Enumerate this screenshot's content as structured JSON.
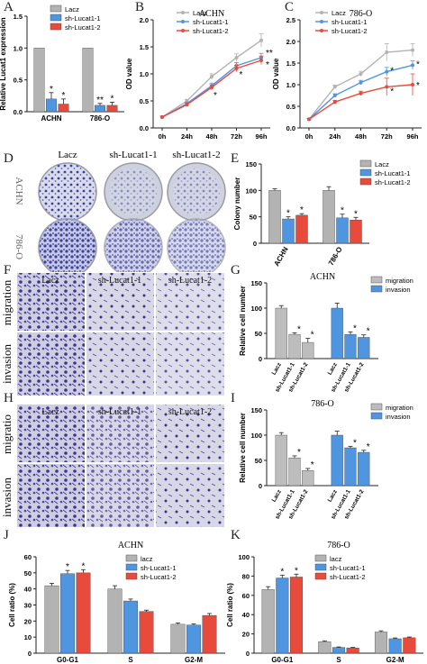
{
  "colors": {
    "lacz": "#b3b3b3",
    "sh1": "#4f95e0",
    "sh2": "#e84a3c",
    "migration": "#bdbdbd",
    "invasion": "#4f95e0",
    "dish_stain": "#3b3fa8",
    "transwell_bg": "#c9c8dc",
    "transwell_cell": "#3a3590"
  },
  "panel_letters": [
    "A",
    "B",
    "C",
    "D",
    "E",
    "F",
    "G",
    "H",
    "I",
    "J",
    "K"
  ],
  "images": {
    "colony_columns": [
      "Lacz",
      "sh-Lucat1-1",
      "sh-Lucat1-2"
    ],
    "colony_rows": [
      "ACHN",
      "786-O"
    ],
    "transwell_F_columns": [
      "Lacz",
      "sh-Lucat1-1",
      "sh-Lucat1-2"
    ],
    "transwell_F_rows": [
      "migration",
      "invasion"
    ],
    "transwell_H_columns": [
      "Lacz",
      "sh-Lucat1-1",
      "sh-Lucat1-2"
    ],
    "transwell_H_rows": [
      "migratio",
      "invasion"
    ]
  },
  "chart_data": [
    {
      "id": "A",
      "type": "bar",
      "ylabel": "Relative Lucat1 expression",
      "ylim": [
        0,
        1.5
      ],
      "yticks": [
        "0.0",
        "0.5",
        "1.0",
        "1.5"
      ],
      "categories": [
        "ACHN",
        "786-O"
      ],
      "legend": [
        "Lacz",
        "sh-Lucat1-1",
        "sh-Lucat1-2"
      ],
      "series": [
        {
          "name": "Lacz",
          "values": [
            1.0,
            1.0
          ],
          "errors": [
            0,
            0
          ],
          "sig": [
            "",
            ""
          ]
        },
        {
          "name": "sh-Lucat1-1",
          "values": [
            0.2,
            0.1
          ],
          "errors": [
            0.1,
            0.03
          ],
          "sig": [
            "*",
            "**"
          ]
        },
        {
          "name": "sh-Lucat1-2",
          "values": [
            0.12,
            0.1
          ],
          "errors": [
            0.08,
            0.05
          ],
          "sig": [
            "*",
            "*"
          ]
        }
      ]
    },
    {
      "id": "B",
      "type": "line",
      "title": "ACHN",
      "ylabel": "OD value",
      "ylim": [
        0,
        2.0
      ],
      "yticks": [
        "0.0",
        "0.5",
        "1.0",
        "1.5",
        "2.0"
      ],
      "x": [
        "0h",
        "24h",
        "48h",
        "72h",
        "96h"
      ],
      "legend": [
        "Lacz",
        "sh-Lucat1-1",
        "sh-Lucat1-2"
      ],
      "series": [
        {
          "name": "Lacz",
          "values": [
            0.2,
            0.5,
            0.95,
            1.3,
            1.62
          ],
          "errors": [
            0.02,
            0.03,
            0.05,
            0.07,
            0.12
          ]
        },
        {
          "name": "sh-Lucat1-1",
          "values": [
            0.2,
            0.45,
            0.78,
            1.15,
            1.3
          ],
          "errors": [
            0.02,
            0.03,
            0.05,
            0.06,
            0.08
          ]
        },
        {
          "name": "sh-Lucat1-2",
          "values": [
            0.2,
            0.43,
            0.75,
            1.1,
            1.25
          ],
          "errors": [
            0.02,
            0.03,
            0.05,
            0.06,
            0.08
          ]
        }
      ],
      "annotations": [
        "*",
        "*",
        "**",
        "*"
      ]
    },
    {
      "id": "C",
      "type": "line",
      "title": "786-O",
      "ylabel": "OD value",
      "ylim": [
        0,
        2.5
      ],
      "yticks": [
        "0.0",
        "0.5",
        "1.0",
        "1.5",
        "2.0",
        "2.5"
      ],
      "x": [
        "0h",
        "24h",
        "48h",
        "72h",
        "96h"
      ],
      "legend": [
        "Lacz",
        "sh-Lucat1-1",
        "sh-Lucat1-2"
      ],
      "series": [
        {
          "name": "Lacz",
          "values": [
            0.2,
            0.95,
            1.25,
            1.75,
            1.8
          ],
          "errors": [
            0.02,
            0.04,
            0.06,
            0.2,
            0.15
          ]
        },
        {
          "name": "sh-Lucat1-1",
          "values": [
            0.2,
            0.75,
            1.05,
            1.3,
            1.45
          ],
          "errors": [
            0.02,
            0.04,
            0.05,
            0.1,
            0.1
          ]
        },
        {
          "name": "sh-Lucat1-2",
          "values": [
            0.2,
            0.6,
            0.8,
            0.95,
            1.0
          ],
          "errors": [
            0.02,
            0.04,
            0.05,
            0.2,
            0.25
          ]
        }
      ],
      "annotations": [
        "*",
        "*",
        "*",
        "*"
      ]
    },
    {
      "id": "E",
      "type": "bar",
      "ylabel": "Colony number",
      "ylim": [
        0,
        150
      ],
      "yticks": [
        "0",
        "50",
        "100",
        "150"
      ],
      "categories": [
        "ACHN",
        "786-O"
      ],
      "legend": [
        "Lacz",
        "sh-Lucat1-1",
        "sh-Lucat1-2"
      ],
      "series": [
        {
          "name": "Lacz",
          "values": [
            100,
            100
          ],
          "errors": [
            3,
            7
          ],
          "sig": [
            "",
            ""
          ]
        },
        {
          "name": "sh-Lucat1-1",
          "values": [
            46,
            48
          ],
          "errors": [
            4,
            7
          ],
          "sig": [
            "*",
            "*"
          ]
        },
        {
          "name": "sh-Lucat1-2",
          "values": [
            53,
            44
          ],
          "errors": [
            3,
            5
          ],
          "sig": [
            "*",
            "*"
          ]
        }
      ]
    },
    {
      "id": "G",
      "type": "bar",
      "title": "ACHN",
      "ylabel": "Relative cell number",
      "ylim": [
        0,
        150
      ],
      "yticks": [
        "0",
        "50",
        "100",
        "150"
      ],
      "categories": [
        "Lacz",
        "sh-Lucat1-1",
        "sh-Lucat1-2"
      ],
      "legend": [
        "migration",
        "invasion"
      ],
      "series": [
        {
          "name": "migration",
          "values": [
            100,
            48,
            32
          ],
          "errors": [
            5,
            3,
            8
          ],
          "sig": [
            "",
            "*",
            "*"
          ]
        },
        {
          "name": "invasion",
          "values": [
            100,
            48,
            42
          ],
          "errors": [
            10,
            5,
            5
          ],
          "sig": [
            "",
            "*",
            "*"
          ]
        }
      ]
    },
    {
      "id": "I",
      "type": "bar",
      "title": "786-O",
      "ylabel": "Relative cell number",
      "ylim": [
        0,
        150
      ],
      "yticks": [
        "0",
        "50",
        "100",
        "150"
      ],
      "categories": [
        "Lacz",
        "sh-Lucat1-1",
        "sh-Lucat1-2"
      ],
      "legend": [
        "migration",
        "invasion"
      ],
      "series": [
        {
          "name": "migration",
          "values": [
            100,
            55,
            30
          ],
          "errors": [
            5,
            4,
            4
          ],
          "sig": [
            "",
            "*",
            "*"
          ]
        },
        {
          "name": "invasion",
          "values": [
            100,
            75,
            66
          ],
          "errors": [
            8,
            3,
            4
          ],
          "sig": [
            "",
            "*",
            "*"
          ]
        }
      ]
    },
    {
      "id": "J",
      "type": "bar",
      "title": "ACHN",
      "ylabel": "Cell ratio (%)",
      "ylim": [
        0,
        60
      ],
      "yticks": [
        "0",
        "10",
        "20",
        "30",
        "40",
        "50",
        "60"
      ],
      "categories": [
        "G0-G1",
        "S",
        "G2-M"
      ],
      "legend": [
        "lacz",
        "sh-Lucat1-1",
        "sh-Lucat1-2"
      ],
      "series": [
        {
          "name": "lacz",
          "values": [
            42,
            40,
            18
          ],
          "errors": [
            1.5,
            2,
            0.8
          ],
          "sig": [
            "",
            "",
            ""
          ]
        },
        {
          "name": "sh-Lucat1-1",
          "values": [
            49.5,
            32.5,
            17.5
          ],
          "errors": [
            2,
            1.2,
            0.7
          ],
          "sig": [
            "*",
            "",
            ""
          ]
        },
        {
          "name": "sh-Lucat1-2",
          "values": [
            50,
            26,
            23.5
          ],
          "errors": [
            2,
            0.8,
            1.2
          ],
          "sig": [
            "*",
            "",
            ""
          ]
        }
      ]
    },
    {
      "id": "K",
      "type": "bar",
      "title": "786-O",
      "ylabel": "Cell ratio (%)",
      "ylim": [
        0,
        100
      ],
      "yticks": [
        "0",
        "20",
        "40",
        "60",
        "80",
        "100"
      ],
      "categories": [
        "G0-G1",
        "S",
        "G2-M"
      ],
      "legend": [
        "lacz",
        "sh-Lucat1-1",
        "sh-Lucat1-2"
      ],
      "series": [
        {
          "name": "lacz",
          "values": [
            66,
            12,
            22
          ],
          "errors": [
            3,
            0.8,
            1.2
          ],
          "sig": [
            "",
            "",
            ""
          ]
        },
        {
          "name": "sh-Lucat1-1",
          "values": [
            78,
            6,
            15
          ],
          "errors": [
            3,
            0.5,
            0.8
          ],
          "sig": [
            "*",
            "",
            ""
          ]
        },
        {
          "name": "sh-Lucat1-2",
          "values": [
            79,
            5.5,
            16
          ],
          "errors": [
            3,
            0.5,
            0.8
          ],
          "sig": [
            "*",
            "",
            ""
          ]
        }
      ]
    }
  ]
}
